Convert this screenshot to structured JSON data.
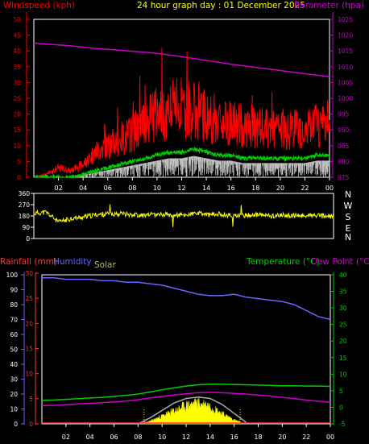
{
  "header": {
    "wind_label": "Windspeed (kph)",
    "title": "24 hour graph day : 01 December 2025",
    "baro_label": "Barometer (hpa)"
  },
  "lower_header": {
    "rain_label": "Rainfall (mm)",
    "humidity_label": "Humidity",
    "solar_label": "Solar",
    "temp_label": "Temperature (°C)",
    "dew_label": "Dew Point (°C)"
  },
  "colors": {
    "background": "#000000",
    "wind": "#ff0000",
    "wind_avg": "#00cc00",
    "gust_white": "#ffffff",
    "barometer": "#cc00cc",
    "direction": "#ffff00",
    "rain": "#ff3333",
    "humidity": "#6666ff",
    "solar": "#ffff00",
    "solar_max": "#aaaaaa",
    "temperature": "#00cc00",
    "dew": "#cc00cc",
    "axis": "#ffffff",
    "title": "#ffff00"
  },
  "x_ticks": [
    "02",
    "04",
    "06",
    "08",
    "10",
    "12",
    "14",
    "16",
    "18",
    "20",
    "22",
    "00"
  ],
  "direction_labels": [
    "N",
    "W",
    "S",
    "E",
    "N"
  ],
  "chart_data": [
    {
      "type": "line",
      "title": "24 hour graph day : 01 December 2025",
      "xlabel": "",
      "ylabel": "Windspeed (kph)",
      "y2label": "Barometer (hpa)",
      "ylim": [
        0,
        50
      ],
      "y2lim": [
        975,
        1025
      ],
      "y_ticks": [
        0,
        5,
        10,
        15,
        20,
        25,
        30,
        35,
        40,
        45,
        50
      ],
      "y2_ticks": [
        975,
        980,
        985,
        990,
        995,
        1000,
        1005,
        1010,
        1015,
        1020,
        1025
      ],
      "x_hours": [
        0,
        1,
        2,
        3,
        4,
        5,
        6,
        7,
        8,
        9,
        10,
        11,
        12,
        13,
        14,
        15,
        16,
        17,
        18,
        19,
        20,
        21,
        22,
        23,
        24
      ],
      "series": [
        {
          "name": "Windspeed (kph)",
          "axis": "left",
          "values": [
            0,
            1,
            3,
            2,
            4,
            8,
            10,
            12,
            14,
            18,
            20,
            21,
            22,
            21,
            19,
            18,
            17,
            16,
            16,
            15,
            15,
            16,
            15,
            16,
            17
          ]
        },
        {
          "name": "",
          "axis": "left",
          "values": [
            0,
            0,
            0,
            0,
            1,
            2,
            3,
            4,
            5,
            6,
            7,
            8,
            8,
            9,
            8,
            7,
            7,
            6,
            6,
            6,
            6,
            6,
            6,
            7,
            7
          ]
        },
        {
          "name": "Barometer (hpa)",
          "axis": "right",
          "values": [
            1017.5,
            1017.2,
            1016.9,
            1016.6,
            1016.2,
            1015.8,
            1015.5,
            1015.2,
            1014.9,
            1014.6,
            1014.2,
            1013.7,
            1013.2,
            1012.6,
            1012.0,
            1011.4,
            1010.8,
            1010.3,
            1009.8,
            1009.3,
            1008.8,
            1008.3,
            1007.8,
            1007.3,
            1006.8
          ]
        }
      ]
    },
    {
      "type": "line",
      "title": "",
      "ylabel": "",
      "ylim": [
        0,
        360
      ],
      "y_ticks": [
        0,
        90,
        180,
        270,
        360
      ],
      "x_hours": [
        0,
        1,
        2,
        3,
        4,
        5,
        6,
        7,
        8,
        9,
        10,
        11,
        12,
        13,
        14,
        15,
        16,
        17,
        18,
        19,
        20,
        21,
        22,
        23,
        24
      ],
      "series": [
        {
          "name": "",
          "values": [
            200,
            210,
            130,
            160,
            170,
            190,
            195,
            200,
            190,
            185,
            195,
            190,
            185,
            200,
            190,
            195,
            180,
            185,
            190,
            180,
            185,
            180,
            185,
            180,
            175
          ]
        }
      ]
    },
    {
      "type": "line",
      "title": "",
      "ylabel": "Rainfall (mm)",
      "y2label": "Temperature (°C)",
      "ylim": [
        0,
        100
      ],
      "y_ticks": [
        0,
        10,
        20,
        30,
        40,
        50,
        60,
        70,
        80,
        90,
        100
      ],
      "rain_ticks": [
        0,
        5,
        10,
        15,
        20,
        25,
        30
      ],
      "y2lim": [
        -5,
        40
      ],
      "y2_ticks": [
        -5,
        0,
        5,
        10,
        15,
        20,
        25,
        30,
        35,
        40
      ],
      "x_hours": [
        0,
        1,
        2,
        3,
        4,
        5,
        6,
        7,
        8,
        9,
        10,
        11,
        12,
        13,
        14,
        15,
        16,
        17,
        18,
        19,
        20,
        21,
        22,
        23,
        24
      ],
      "series": [
        {
          "name": "Humidity",
          "axis": "humidity",
          "values": [
            98,
            98,
            97,
            97,
            97,
            96,
            96,
            95,
            95,
            94,
            93,
            91,
            89,
            87,
            86,
            86,
            87,
            85,
            84,
            83,
            82,
            80,
            76,
            72,
            70
          ]
        },
        {
          "name": "Temperature (°C)",
          "axis": "right",
          "values": [
            2.1,
            2.2,
            2.4,
            2.6,
            2.8,
            3.0,
            3.3,
            3.6,
            4.0,
            4.6,
            5.3,
            5.9,
            6.4,
            6.8,
            7.0,
            7.0,
            6.9,
            6.8,
            6.7,
            6.6,
            6.5,
            6.5,
            6.4,
            6.4,
            6.3
          ]
        },
        {
          "name": "Dew Point (°C)",
          "axis": "right",
          "values": [
            0.5,
            0.6,
            0.8,
            1.0,
            1.2,
            1.4,
            1.6,
            1.9,
            2.3,
            2.8,
            3.3,
            3.7,
            4.1,
            4.4,
            4.5,
            4.4,
            4.2,
            4.0,
            3.7,
            3.4,
            3.0,
            2.6,
            2.2,
            1.8,
            1.5
          ]
        },
        {
          "name": "Solar",
          "axis": "humidity",
          "values": [
            0,
            0,
            0,
            0,
            0,
            0,
            0,
            0,
            0,
            2,
            6,
            10,
            14,
            16,
            14,
            8,
            3,
            0,
            0,
            0,
            0,
            0,
            0,
            0,
            0
          ]
        },
        {
          "name": "",
          "axis": "humidity",
          "values": [
            0,
            0,
            0,
            0,
            0,
            0,
            0,
            0,
            0,
            4,
            9,
            14,
            17,
            18,
            17,
            13,
            7,
            1,
            0,
            0,
            0,
            0,
            0,
            0,
            0
          ]
        },
        {
          "name": "Rainfall (mm)",
          "axis": "rain",
          "values": [
            0,
            0,
            0,
            0,
            0,
            0,
            0,
            0,
            0,
            0,
            0,
            0,
            0,
            0,
            0,
            0,
            0,
            0,
            0,
            0,
            0,
            0,
            0,
            0,
            0
          ]
        }
      ]
    }
  ]
}
